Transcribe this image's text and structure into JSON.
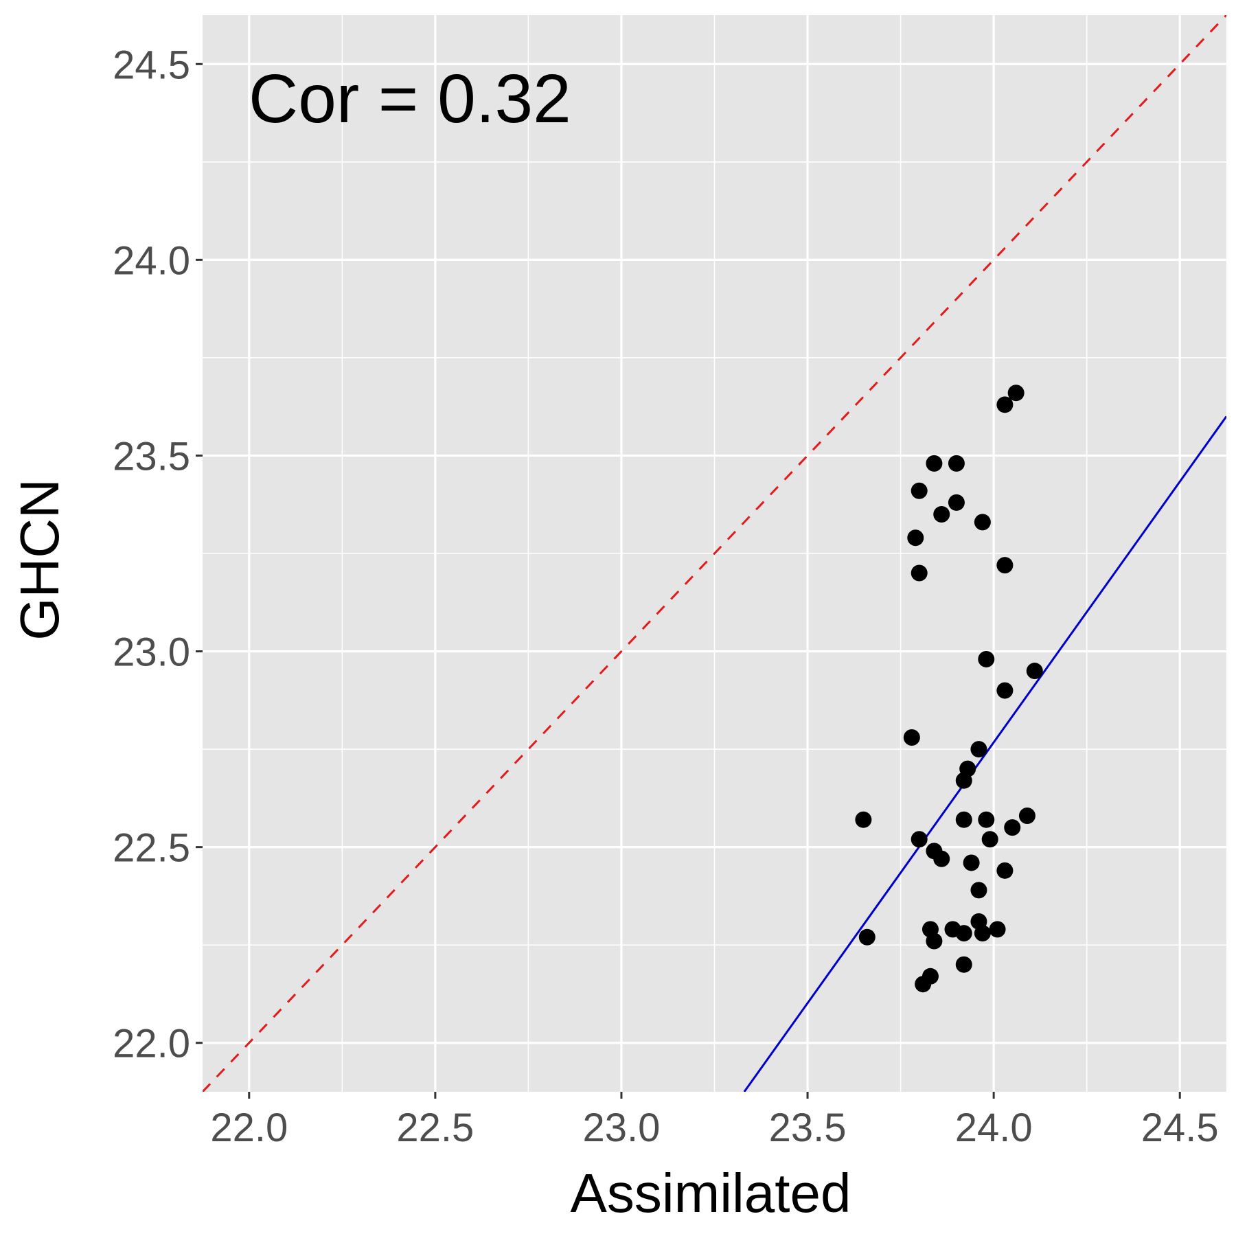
{
  "chart_data": {
    "type": "scatter",
    "title": "",
    "xlabel": "Assimilated",
    "ylabel": "GHCN",
    "xlim": [
      21.875,
      24.625
    ],
    "ylim": [
      21.875,
      24.625
    ],
    "grid": true,
    "x_ticks": [
      22.0,
      22.5,
      23.0,
      23.5,
      24.0,
      24.5
    ],
    "y_ticks": [
      22.0,
      22.5,
      23.0,
      23.5,
      24.0,
      24.5
    ],
    "x_tick_labels": [
      "22.0",
      "22.5",
      "23.0",
      "23.5",
      "24.0",
      "24.5"
    ],
    "y_tick_labels": [
      "22.0",
      "22.5",
      "23.0",
      "23.5",
      "24.0",
      "24.5"
    ],
    "annotation": "Cor = 0.32",
    "identity_line": {
      "slope": 1,
      "intercept": 0,
      "style": "dashed",
      "color": "#e41a1c"
    },
    "fit_line": {
      "from": [
        23.33,
        21.875
      ],
      "to": [
        24.625,
        23.6
      ],
      "color": "#0000cc"
    },
    "point_color": "#000000",
    "points": [
      {
        "x": 24.06,
        "y": 23.66
      },
      {
        "x": 24.03,
        "y": 23.63
      },
      {
        "x": 23.84,
        "y": 23.48
      },
      {
        "x": 23.9,
        "y": 23.48
      },
      {
        "x": 23.8,
        "y": 23.41
      },
      {
        "x": 23.9,
        "y": 23.38
      },
      {
        "x": 23.86,
        "y": 23.35
      },
      {
        "x": 23.97,
        "y": 23.33
      },
      {
        "x": 23.79,
        "y": 23.29
      },
      {
        "x": 24.03,
        "y": 23.22
      },
      {
        "x": 23.8,
        "y": 23.2
      },
      {
        "x": 23.98,
        "y": 22.98
      },
      {
        "x": 24.11,
        "y": 22.95
      },
      {
        "x": 24.03,
        "y": 22.9
      },
      {
        "x": 23.78,
        "y": 22.78
      },
      {
        "x": 23.96,
        "y": 22.75
      },
      {
        "x": 23.93,
        "y": 22.7
      },
      {
        "x": 23.92,
        "y": 22.67
      },
      {
        "x": 23.65,
        "y": 22.57
      },
      {
        "x": 24.09,
        "y": 22.58
      },
      {
        "x": 23.92,
        "y": 22.57
      },
      {
        "x": 23.98,
        "y": 22.57
      },
      {
        "x": 24.05,
        "y": 22.55
      },
      {
        "x": 23.8,
        "y": 22.52
      },
      {
        "x": 23.99,
        "y": 22.52
      },
      {
        "x": 23.84,
        "y": 22.49
      },
      {
        "x": 23.86,
        "y": 22.47
      },
      {
        "x": 23.94,
        "y": 22.46
      },
      {
        "x": 24.03,
        "y": 22.44
      },
      {
        "x": 23.96,
        "y": 22.39
      },
      {
        "x": 23.96,
        "y": 22.31
      },
      {
        "x": 23.83,
        "y": 22.29
      },
      {
        "x": 23.89,
        "y": 22.29
      },
      {
        "x": 23.92,
        "y": 22.28
      },
      {
        "x": 23.97,
        "y": 22.28
      },
      {
        "x": 24.01,
        "y": 22.29
      },
      {
        "x": 23.66,
        "y": 22.27
      },
      {
        "x": 23.84,
        "y": 22.26
      },
      {
        "x": 23.92,
        "y": 22.2
      },
      {
        "x": 23.83,
        "y": 22.17
      },
      {
        "x": 23.81,
        "y": 22.15
      }
    ]
  }
}
